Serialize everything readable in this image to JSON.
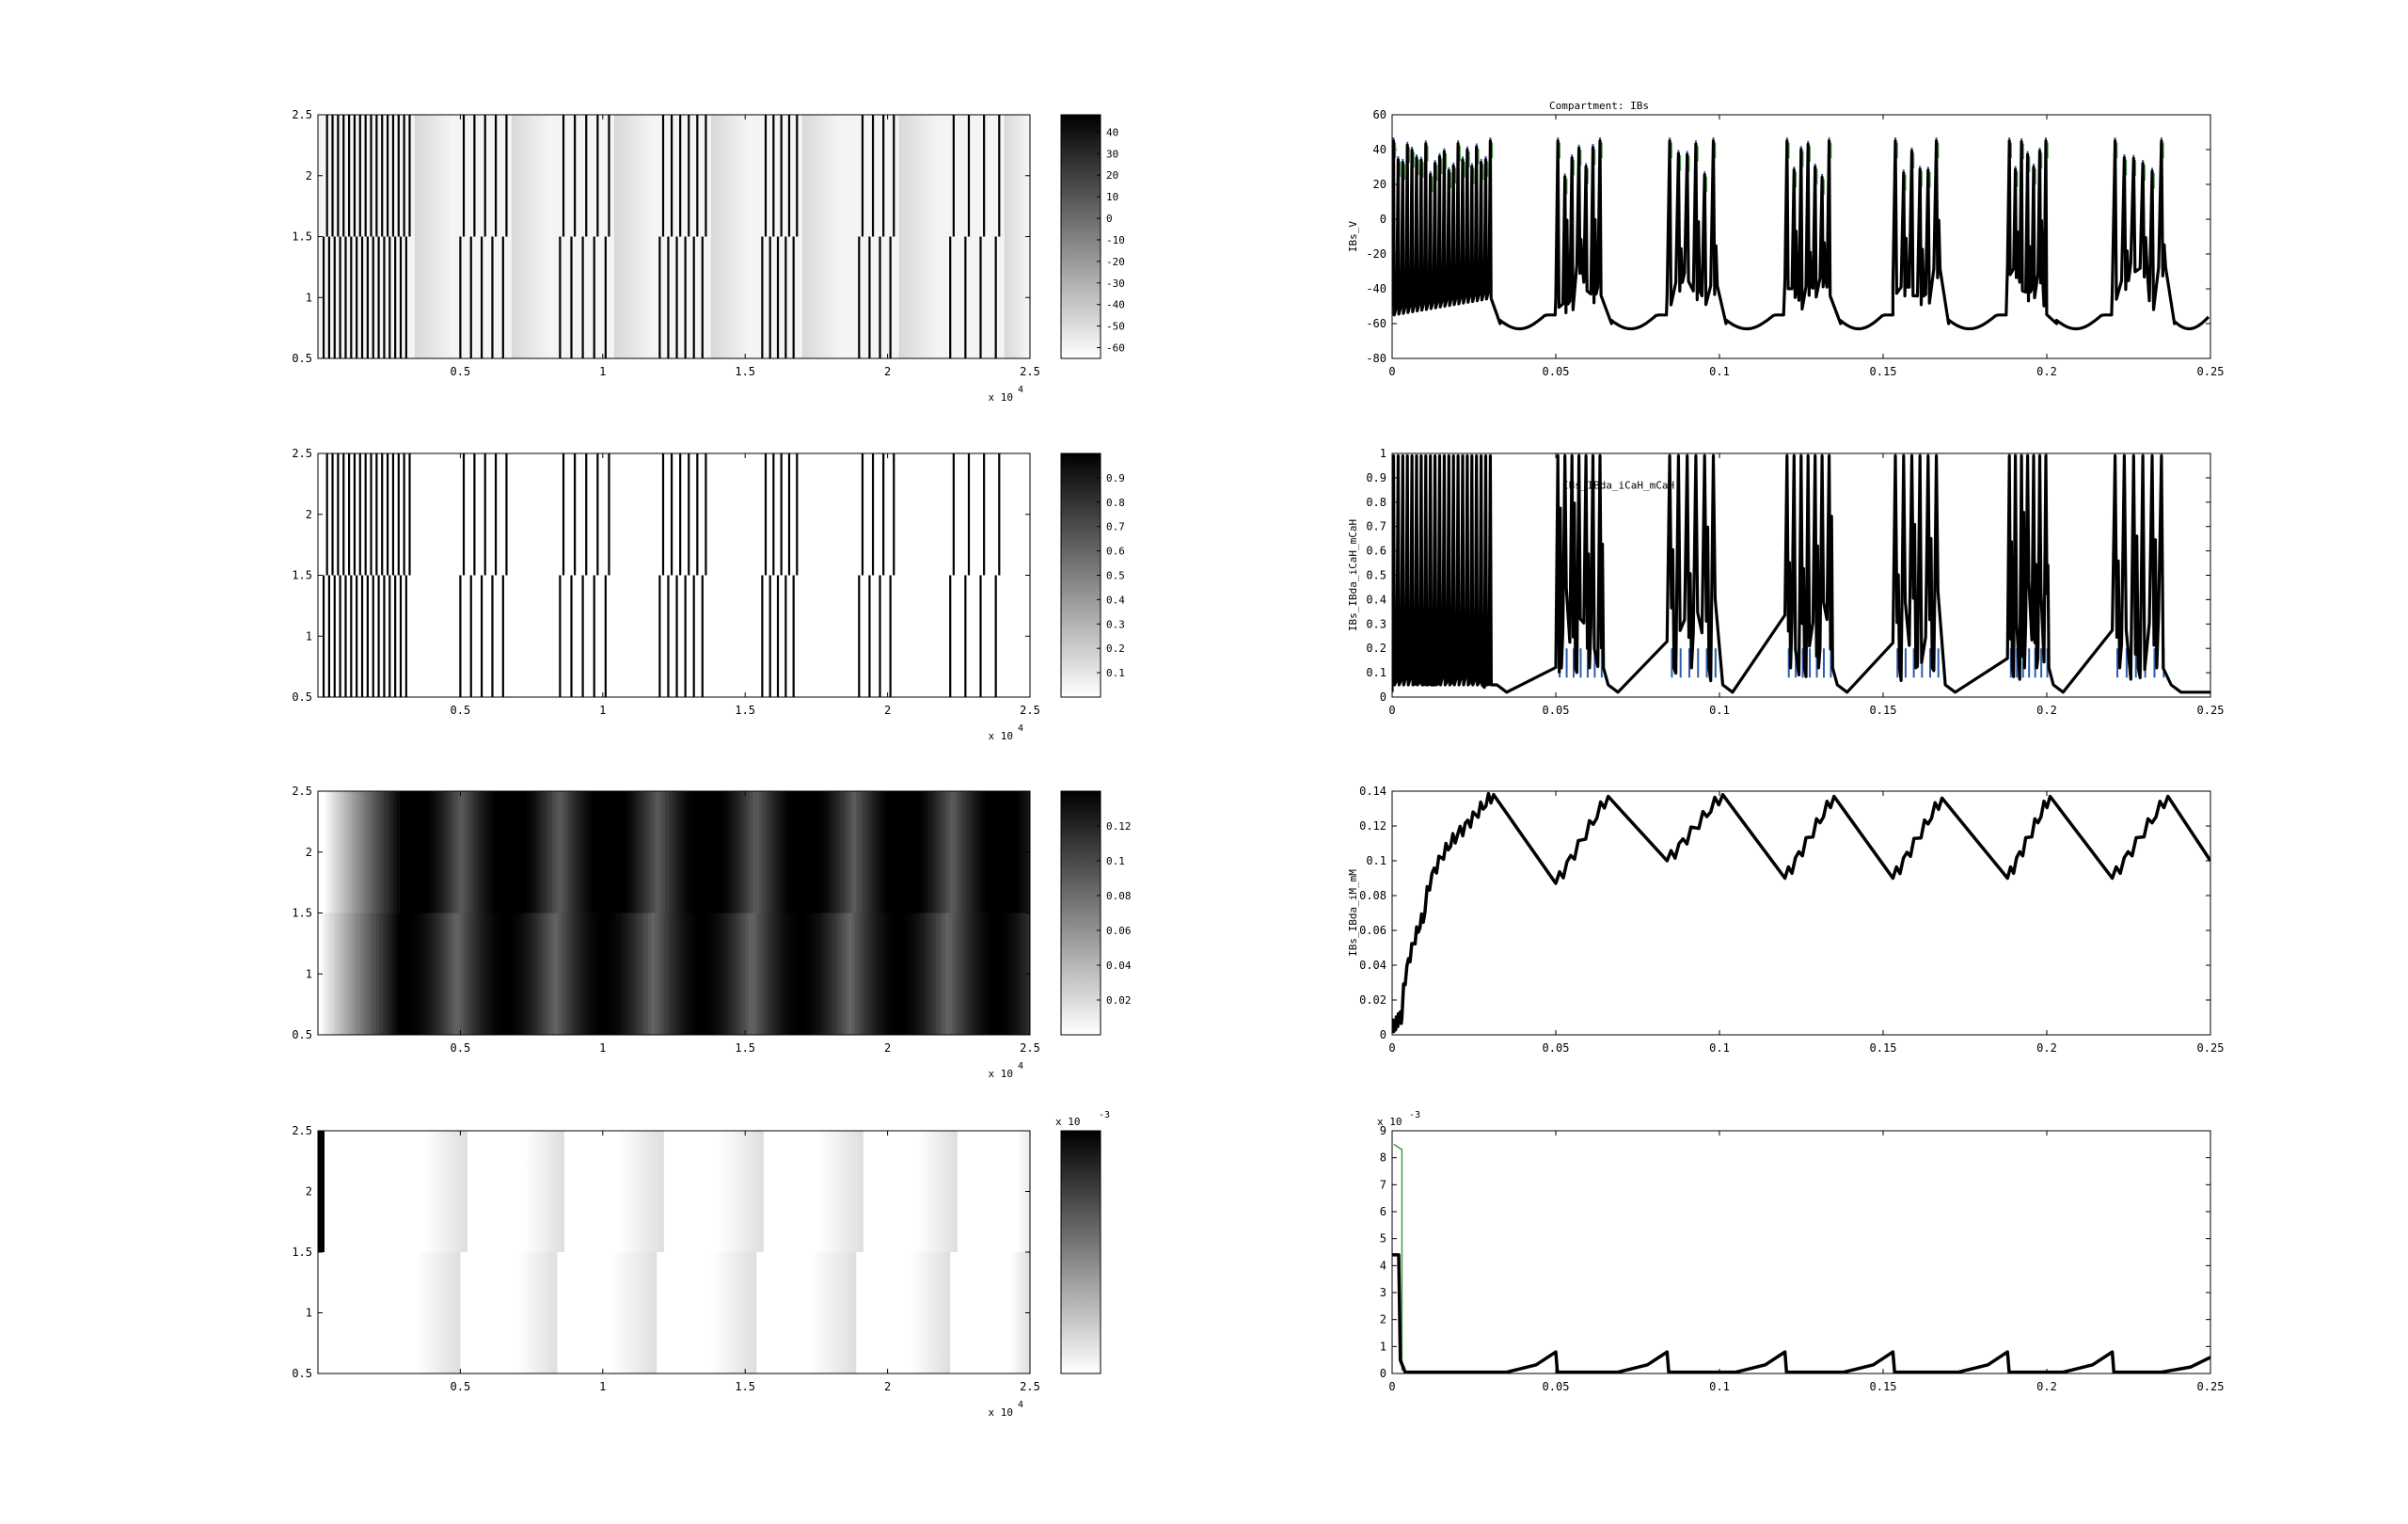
{
  "figure": {
    "title": "Compartment: IBs"
  },
  "chart_data": [
    {
      "id": "heat1",
      "type": "heatmap",
      "colormap": "gray_reversed",
      "xlim": [
        0,
        25000
      ],
      "ylim": [
        0.5,
        2.5
      ],
      "xticks": [
        "0.5",
        "1",
        "1.5",
        "2",
        "2.5"
      ],
      "yticks": [
        "0.5",
        "1",
        "1.5",
        "2",
        "2.5"
      ],
      "x_exponent": "x 10",
      "x_exponent_power": "4",
      "colorbar": {
        "range": [
          -65,
          48
        ],
        "ticks": [
          "40",
          "30",
          "20",
          "10",
          "0",
          "-10",
          "-20",
          "-30",
          "-40",
          "-50",
          "-60"
        ]
      },
      "bursts_x": [
        [
          0,
          3100
        ],
        [
          4800,
          6500
        ],
        [
          8300,
          10100
        ],
        [
          11800,
          13500
        ],
        [
          15400,
          16700
        ],
        [
          18800,
          20100
        ],
        [
          22000,
          23800
        ]
      ],
      "spike_count": [
        16,
        5,
        5,
        6,
        5,
        4,
        4
      ]
    },
    {
      "id": "heat2",
      "type": "heatmap",
      "colormap": "gray_reversed",
      "xlim": [
        0,
        25000
      ],
      "ylim": [
        0.5,
        2.5
      ],
      "xticks": [
        "0.5",
        "1",
        "1.5",
        "2",
        "2.5"
      ],
      "yticks": [
        "0.5",
        "1",
        "1.5",
        "2",
        "2.5"
      ],
      "x_exponent": "x 10",
      "x_exponent_power": "4",
      "colorbar": {
        "range": [
          0,
          1
        ],
        "ticks": [
          "0.9",
          "0.8",
          "0.7",
          "0.6",
          "0.5",
          "0.4",
          "0.3",
          "0.2",
          "0.1"
        ]
      },
      "bursts_x": [
        [
          0,
          3100
        ],
        [
          4800,
          6500
        ],
        [
          8300,
          10100
        ],
        [
          11800,
          13500
        ],
        [
          15400,
          16700
        ],
        [
          18800,
          20100
        ],
        [
          22000,
          23800
        ]
      ],
      "spike_count": [
        16,
        5,
        5,
        6,
        5,
        4,
        4
      ]
    },
    {
      "id": "heat3",
      "type": "heatmap",
      "colormap": "gray_reversed",
      "xlim": [
        0,
        25000
      ],
      "ylim": [
        0.5,
        2.5
      ],
      "xticks": [
        "0.5",
        "1",
        "1.5",
        "2",
        "2.5"
      ],
      "yticks": [
        "0.5",
        "1",
        "1.5",
        "2",
        "2.5"
      ],
      "x_exponent": "x 10",
      "x_exponent_power": "4",
      "colorbar": {
        "range": [
          0,
          0.14
        ],
        "ticks": [
          "0.12",
          "0.1",
          "0.08",
          "0.06",
          "0.04",
          "0.02"
        ]
      }
    },
    {
      "id": "heat4",
      "type": "heatmap",
      "colormap": "gray_reversed",
      "xlim": [
        0,
        25000
      ],
      "ylim": [
        0.5,
        2.5
      ],
      "xticks": [
        "0.5",
        "1",
        "1.5",
        "2",
        "2.5"
      ],
      "yticks": [
        "0.5",
        "1",
        "1.5",
        "2",
        "2.5"
      ],
      "x_exponent": "x 10",
      "x_exponent_power": "4",
      "colorbar": {
        "range": [
          0,
          0.0087
        ],
        "ticks": [
          "8",
          "7",
          "6",
          "5",
          "4",
          "3",
          "2",
          "1"
        ],
        "exponent": "x 10",
        "exponent_power": "-3"
      },
      "bands_x": [
        [
          3500,
          5000
        ],
        [
          7000,
          8400
        ],
        [
          10300,
          11900
        ],
        [
          13800,
          15400
        ],
        [
          17300,
          18900
        ],
        [
          20800,
          22200
        ],
        [
          24300,
          25000
        ]
      ]
    },
    {
      "id": "line1",
      "type": "line",
      "title": "Compartment: IBs",
      "ylabel": "IBs_V",
      "xlim": [
        0,
        0.25
      ],
      "ylim": [
        -80,
        60
      ],
      "xticks": [
        "0",
        "0.05",
        "0.1",
        "0.15",
        "0.2",
        "0.25"
      ],
      "yticks": [
        "-80",
        "-60",
        "-40",
        "-20",
        "0",
        "20",
        "40",
        "60"
      ],
      "bursts": [
        [
          0,
          0.031
        ],
        [
          0.05,
          0.065
        ],
        [
          0.084,
          0.1
        ],
        [
          0.12,
          0.135
        ],
        [
          0.153,
          0.168
        ],
        [
          0.188,
          0.201
        ],
        [
          0.22,
          0.237
        ]
      ],
      "spike_peak": 45,
      "trough": -62
    },
    {
      "id": "line2",
      "type": "line",
      "ylabel": "IBs_IBda_iCaH_mCaH",
      "annotation": "IBs_IBda_iCaH_mCaH",
      "xlim": [
        0,
        0.25
      ],
      "ylim": [
        0,
        1
      ],
      "xticks": [
        "0",
        "0.05",
        "0.1",
        "0.15",
        "0.2",
        "0.25"
      ],
      "yticks": [
        "0",
        "0.1",
        "0.2",
        "0.3",
        "0.4",
        "0.5",
        "0.6",
        "0.7",
        "0.8",
        "0.9",
        "1"
      ]
    },
    {
      "id": "line3",
      "type": "line",
      "ylabel": "IBs_IBda_iM_mM",
      "xlim": [
        0,
        0.25
      ],
      "ylim": [
        0,
        0.14
      ],
      "xticks": [
        "0",
        "0.05",
        "0.1",
        "0.15",
        "0.2",
        "0.25"
      ],
      "yticks": [
        "0",
        "0.02",
        "0.04",
        "0.06",
        "0.08",
        "0.1",
        "0.12",
        "0.14"
      ],
      "x": [
        0,
        0.003,
        0.01,
        0.02,
        0.031,
        0.05,
        0.066,
        0.084,
        0.101,
        0.12,
        0.135,
        0.153,
        0.168,
        0.188,
        0.201,
        0.22,
        0.237,
        0.25
      ],
      "y": [
        0.005,
        0.01,
        0.07,
        0.115,
        0.138,
        0.087,
        0.137,
        0.1,
        0.138,
        0.09,
        0.137,
        0.09,
        0.136,
        0.09,
        0.137,
        0.09,
        0.137,
        0.1
      ]
    },
    {
      "id": "line4",
      "type": "line",
      "xlim": [
        0,
        0.25
      ],
      "ylim": [
        0,
        9
      ],
      "xticks": [
        "0",
        "0.05",
        "0.1",
        "0.15",
        "0.2",
        "0.25"
      ],
      "yticks": [
        "0",
        "1",
        "2",
        "3",
        "4",
        "5",
        "6",
        "7",
        "8",
        "9"
      ],
      "y_exponent": "x 10",
      "y_exponent_power": "-3",
      "peaks": [
        [
          0.05,
          0.8
        ],
        [
          0.084,
          0.8
        ],
        [
          0.12,
          0.8
        ],
        [
          0.153,
          0.8
        ],
        [
          0.188,
          0.8
        ],
        [
          0.22,
          0.8
        ],
        [
          0.25,
          0.6
        ]
      ]
    }
  ]
}
